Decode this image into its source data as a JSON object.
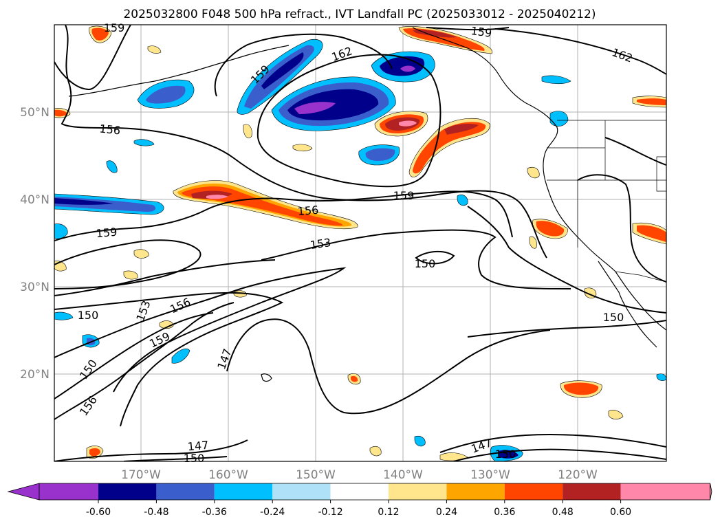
{
  "title": "2025032800 F048 500 hPa refract., IVT Landfall PC (2025033012 - 2025040212)",
  "lat_ticks": [
    "50°N",
    "40°N",
    "30°N",
    "20°N"
  ],
  "lon_ticks": [
    "170°W",
    "160°W",
    "150°W",
    "140°W",
    "130°W",
    "120°W"
  ],
  "contour_labels": [
    "159",
    "159",
    "162",
    "162",
    "159",
    "156",
    "159",
    "156",
    "159",
    "153",
    "150",
    "150",
    "153",
    "156",
    "159",
    "150",
    "150",
    "156",
    "147",
    "147",
    "150",
    "147",
    "150"
  ],
  "colorbar": {
    "ticks": [
      "-0.60",
      "-0.48",
      "-0.36",
      "-0.24",
      "-0.12",
      "0.12",
      "0.24",
      "0.36",
      "0.48",
      "0.60"
    ],
    "colors": [
      "#9932cc",
      "#00008b",
      "#3a5fcd",
      "#00bfff",
      "#afe2f8",
      "#ffffff",
      "#ffe68c",
      "#ffa500",
      "#ff4500",
      "#b22222",
      "#ff88aa"
    ]
  },
  "shading_colors": {
    "neg_outer": "#00bfff",
    "neg_mid": "#3a5fcd",
    "neg_inner": "#00008b",
    "neg_core": "#9932cc",
    "pos_outer": "#ffe68c",
    "pos_mid": "#ffa500",
    "pos_inner": "#ff4500",
    "pos_core": "#b22222",
    "pos_peak": "#ff88aa"
  }
}
